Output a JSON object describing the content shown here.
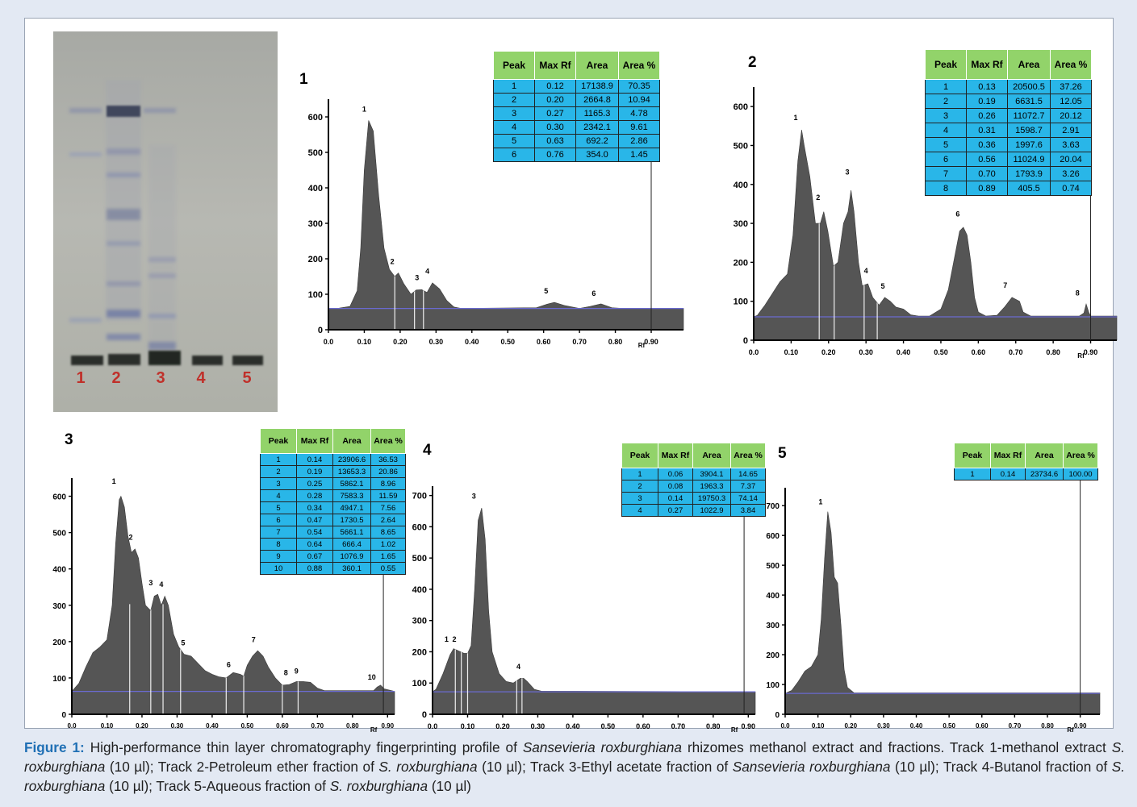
{
  "caption": {
    "label": "Figure 1:",
    "parts": [
      {
        "t": " High-performance thin layer chromatography fingerprinting profile of ",
        "i": false
      },
      {
        "t": "Sansevieria roxburghiana",
        "i": true
      },
      {
        "t": " rhizomes methanol extract and fractions. Track 1-methanol extract ",
        "i": false
      },
      {
        "t": "S. roxburghiana",
        "i": true
      },
      {
        "t": " (10 µl); Track 2-Petroleum ether fraction of ",
        "i": false
      },
      {
        "t": "S. roxburghiana",
        "i": true
      },
      {
        "t": " (10 µl); Track 3-Ethyl acetate fraction of ",
        "i": false
      },
      {
        "t": "Sansevieria roxburghiana",
        "i": true
      },
      {
        "t": " (10 µl); Track 4-Butanol fraction of ",
        "i": false
      },
      {
        "t": "S. roxburghiana",
        "i": true
      },
      {
        "t": " (10 µl); Track 5-Aqueous fraction of ",
        "i": false
      },
      {
        "t": "S. roxburghiana",
        "i": true
      },
      {
        "t": " (10 µl)",
        "i": false
      }
    ]
  },
  "tlc_plate": {
    "track_labels": [
      "1",
      "2",
      "3",
      "4",
      "5"
    ],
    "label_color": "#c0302a"
  },
  "table_headers": [
    "Peak",
    "Max Rf",
    "Area",
    "Area %"
  ],
  "colors": {
    "peak_fill": "#555555",
    "baseline": "#6a6ad0",
    "header": "#92d36a",
    "cell": "#29b6e8"
  },
  "chart_data": [
    {
      "type": "area",
      "panel_label": "1",
      "xlabel": "Rf",
      "x_ticks": [
        "0.0",
        "0.10",
        "0.20",
        "0.30",
        "0.40",
        "0.50",
        "0.60",
        "0.70",
        "0.80",
        "0.90"
      ],
      "y_ticks": [
        "0",
        "100",
        "200",
        "300",
        "400",
        "500",
        "600"
      ],
      "xlim": [
        0,
        0.99
      ],
      "ylim": [
        0,
        650
      ],
      "baseline": 60,
      "profile": [
        [
          0,
          60
        ],
        [
          0.03,
          61
        ],
        [
          0.06,
          66
        ],
        [
          0.08,
          110
        ],
        [
          0.09,
          230
        ],
        [
          0.1,
          450
        ],
        [
          0.112,
          590
        ],
        [
          0.125,
          560
        ],
        [
          0.14,
          380
        ],
        [
          0.155,
          230
        ],
        [
          0.17,
          170
        ],
        [
          0.185,
          150
        ],
        [
          0.195,
          160
        ],
        [
          0.21,
          130
        ],
        [
          0.23,
          100
        ],
        [
          0.245,
          112
        ],
        [
          0.26,
          113
        ],
        [
          0.275,
          105
        ],
        [
          0.29,
          132
        ],
        [
          0.31,
          115
        ],
        [
          0.33,
          82
        ],
        [
          0.35,
          64
        ],
        [
          0.37,
          60
        ],
        [
          0.58,
          62
        ],
        [
          0.61,
          72
        ],
        [
          0.63,
          77
        ],
        [
          0.66,
          68
        ],
        [
          0.7,
          60
        ],
        [
          0.73,
          66
        ],
        [
          0.76,
          73
        ],
        [
          0.79,
          62
        ],
        [
          0.82,
          60
        ],
        [
          0.99,
          60
        ]
      ],
      "cut_lines": [
        0.185,
        0.24,
        0.265
      ],
      "peak_labels": [
        {
          "n": "1",
          "x": 0.1,
          "y": 615
        },
        {
          "n": "2",
          "x": 0.178,
          "y": 185
        },
        {
          "n": "3",
          "x": 0.247,
          "y": 140
        },
        {
          "n": "4",
          "x": 0.276,
          "y": 158
        },
        {
          "n": "5",
          "x": 0.607,
          "y": 102
        },
        {
          "n": "6",
          "x": 0.74,
          "y": 96
        }
      ],
      "vline": 0.9,
      "table": [
        [
          "1",
          "0.12",
          "17138.9",
          "70.35"
        ],
        [
          "2",
          "0.20",
          "2664.8",
          "10.94"
        ],
        [
          "3",
          "0.27",
          "1165.3",
          "4.78"
        ],
        [
          "4",
          "0.30",
          "2342.1",
          "9.61"
        ],
        [
          "5",
          "0.63",
          "692.2",
          "2.86"
        ],
        [
          "6",
          "0.76",
          "354.0",
          "1.45"
        ]
      ]
    },
    {
      "type": "area",
      "panel_label": "2",
      "xlabel": "Rf",
      "x_ticks": [
        "0.0",
        "0.10",
        "0.20",
        "0.30",
        "0.40",
        "0.50",
        "0.60",
        "0.70",
        "0.80",
        "0.90"
      ],
      "y_ticks": [
        "0",
        "100",
        "200",
        "300",
        "400",
        "500",
        "600"
      ],
      "xlim": [
        0,
        0.97
      ],
      "ylim": [
        0,
        650
      ],
      "baseline": 60,
      "profile": [
        [
          0,
          60
        ],
        [
          0.01,
          64
        ],
        [
          0.03,
          90
        ],
        [
          0.05,
          120
        ],
        [
          0.07,
          150
        ],
        [
          0.09,
          170
        ],
        [
          0.105,
          270
        ],
        [
          0.118,
          460
        ],
        [
          0.128,
          540
        ],
        [
          0.135,
          500
        ],
        [
          0.15,
          420
        ],
        [
          0.165,
          300
        ],
        [
          0.178,
          300
        ],
        [
          0.187,
          330
        ],
        [
          0.198,
          280
        ],
        [
          0.213,
          190
        ],
        [
          0.225,
          200
        ],
        [
          0.24,
          300
        ],
        [
          0.252,
          330
        ],
        [
          0.26,
          385
        ],
        [
          0.268,
          330
        ],
        [
          0.28,
          200
        ],
        [
          0.29,
          140
        ],
        [
          0.305,
          145
        ],
        [
          0.318,
          110
        ],
        [
          0.335,
          90
        ],
        [
          0.35,
          110
        ],
        [
          0.365,
          100
        ],
        [
          0.38,
          85
        ],
        [
          0.4,
          80
        ],
        [
          0.42,
          65
        ],
        [
          0.44,
          62
        ],
        [
          0.47,
          62
        ],
        [
          0.5,
          80
        ],
        [
          0.52,
          130
        ],
        [
          0.54,
          230
        ],
        [
          0.55,
          280
        ],
        [
          0.56,
          290
        ],
        [
          0.57,
          270
        ],
        [
          0.58,
          200
        ],
        [
          0.59,
          110
        ],
        [
          0.6,
          72
        ],
        [
          0.62,
          62
        ],
        [
          0.65,
          64
        ],
        [
          0.67,
          85
        ],
        [
          0.69,
          110
        ],
        [
          0.71,
          100
        ],
        [
          0.72,
          72
        ],
        [
          0.74,
          62
        ],
        [
          0.87,
          62
        ],
        [
          0.882,
          70
        ],
        [
          0.888,
          93
        ],
        [
          0.895,
          72
        ],
        [
          0.9,
          62
        ],
        [
          0.97,
          62
        ]
      ],
      "cut_lines": [
        0.175,
        0.215,
        0.295,
        0.33
      ],
      "peak_labels": [
        {
          "n": "1",
          "x": 0.112,
          "y": 565
        },
        {
          "n": "2",
          "x": 0.172,
          "y": 360
        },
        {
          "n": "3",
          "x": 0.25,
          "y": 425
        },
        {
          "n": "4",
          "x": 0.3,
          "y": 172
        },
        {
          "n": "5",
          "x": 0.345,
          "y": 132
        },
        {
          "n": "6",
          "x": 0.545,
          "y": 318
        },
        {
          "n": "7",
          "x": 0.672,
          "y": 135
        },
        {
          "n": "8",
          "x": 0.865,
          "y": 115
        }
      ],
      "vline": 0.9,
      "table": [
        [
          "1",
          "0.13",
          "20500.5",
          "37.26"
        ],
        [
          "2",
          "0.19",
          "6631.5",
          "12.05"
        ],
        [
          "3",
          "0.26",
          "11072.7",
          "20.12"
        ],
        [
          "4",
          "0.31",
          "1598.7",
          "2.91"
        ],
        [
          "5",
          "0.36",
          "1997.6",
          "3.63"
        ],
        [
          "6",
          "0.56",
          "11024.9",
          "20.04"
        ],
        [
          "7",
          "0.70",
          "1793.9",
          "3.26"
        ],
        [
          "8",
          "0.89",
          "405.5",
          "0.74"
        ]
      ]
    },
    {
      "type": "area",
      "panel_label": "3",
      "xlabel": "Rf",
      "x_ticks": [
        "0.0",
        "0.10",
        "0.20",
        "0.30",
        "0.40",
        "0.50",
        "0.60",
        "0.70",
        "0.80",
        "0.90"
      ],
      "y_ticks": [
        "0",
        "100",
        "200",
        "300",
        "400",
        "500",
        "600"
      ],
      "xlim": [
        0,
        0.92
      ],
      "ylim": [
        0,
        650
      ],
      "baseline": 63,
      "profile": [
        [
          0,
          63
        ],
        [
          0.02,
          85
        ],
        [
          0.04,
          130
        ],
        [
          0.06,
          170
        ],
        [
          0.08,
          185
        ],
        [
          0.1,
          205
        ],
        [
          0.115,
          300
        ],
        [
          0.125,
          470
        ],
        [
          0.135,
          590
        ],
        [
          0.14,
          600
        ],
        [
          0.15,
          570
        ],
        [
          0.16,
          490
        ],
        [
          0.17,
          445
        ],
        [
          0.18,
          455
        ],
        [
          0.19,
          430
        ],
        [
          0.2,
          360
        ],
        [
          0.21,
          300
        ],
        [
          0.225,
          285
        ],
        [
          0.235,
          325
        ],
        [
          0.245,
          330
        ],
        [
          0.255,
          300
        ],
        [
          0.265,
          325
        ],
        [
          0.275,
          300
        ],
        [
          0.29,
          220
        ],
        [
          0.305,
          185
        ],
        [
          0.32,
          165
        ],
        [
          0.34,
          160
        ],
        [
          0.36,
          140
        ],
        [
          0.38,
          120
        ],
        [
          0.4,
          110
        ],
        [
          0.42,
          103
        ],
        [
          0.44,
          100
        ],
        [
          0.46,
          115
        ],
        [
          0.48,
          110
        ],
        [
          0.49,
          105
        ],
        [
          0.5,
          135
        ],
        [
          0.515,
          160
        ],
        [
          0.53,
          175
        ],
        [
          0.545,
          160
        ],
        [
          0.56,
          130
        ],
        [
          0.58,
          100
        ],
        [
          0.6,
          80
        ],
        [
          0.62,
          82
        ],
        [
          0.64,
          90
        ],
        [
          0.66,
          90
        ],
        [
          0.68,
          88
        ],
        [
          0.7,
          72
        ],
        [
          0.72,
          65
        ],
        [
          0.86,
          65
        ],
        [
          0.87,
          75
        ],
        [
          0.88,
          80
        ],
        [
          0.89,
          70
        ],
        [
          0.92,
          63
        ]
      ],
      "cut_lines": [
        0.165,
        0.225,
        0.26,
        0.31,
        0.44,
        0.49,
        0.6,
        0.645
      ],
      "peak_labels": [
        {
          "n": "1",
          "x": 0.12,
          "y": 635
        },
        {
          "n": "2",
          "x": 0.168,
          "y": 480
        },
        {
          "n": "3",
          "x": 0.225,
          "y": 355
        },
        {
          "n": "4",
          "x": 0.255,
          "y": 350
        },
        {
          "n": "5",
          "x": 0.317,
          "y": 190
        },
        {
          "n": "6",
          "x": 0.447,
          "y": 130
        },
        {
          "n": "7",
          "x": 0.518,
          "y": 198
        },
        {
          "n": "8",
          "x": 0.61,
          "y": 108
        },
        {
          "n": "9",
          "x": 0.64,
          "y": 112
        },
        {
          "n": "10",
          "x": 0.855,
          "y": 95
        }
      ],
      "vline": 0.888,
      "table": [
        [
          "1",
          "0.14",
          "23906.6",
          "36.53"
        ],
        [
          "2",
          "0.19",
          "13653.3",
          "20.86"
        ],
        [
          "3",
          "0.25",
          "5862.1",
          "8.96"
        ],
        [
          "4",
          "0.28",
          "7583.3",
          "11.59"
        ],
        [
          "5",
          "0.34",
          "4947.1",
          "7.56"
        ],
        [
          "6",
          "0.47",
          "1730.5",
          "2.64"
        ],
        [
          "7",
          "0.54",
          "5661.1",
          "8.65"
        ],
        [
          "8",
          "0.64",
          "666.4",
          "1.02"
        ],
        [
          "9",
          "0.67",
          "1076.9",
          "1.65"
        ],
        [
          "10",
          "0.88",
          "360.1",
          "0.55"
        ]
      ]
    },
    {
      "type": "area",
      "panel_label": "4",
      "xlabel": "Rf",
      "x_ticks": [
        "0.0",
        "0.10",
        "0.20",
        "0.30",
        "0.40",
        "0.50",
        "0.60",
        "0.70",
        "0.80",
        "0.90"
      ],
      "y_ticks": [
        "0",
        "100",
        "200",
        "300",
        "400",
        "500",
        "600",
        "700"
      ],
      "xlim": [
        0,
        0.92
      ],
      "ylim": [
        0,
        730
      ],
      "baseline": 72,
      "profile": [
        [
          0,
          72
        ],
        [
          0.01,
          80
        ],
        [
          0.03,
          130
        ],
        [
          0.05,
          190
        ],
        [
          0.06,
          210
        ],
        [
          0.07,
          205
        ],
        [
          0.08,
          200
        ],
        [
          0.09,
          195
        ],
        [
          0.1,
          195
        ],
        [
          0.11,
          220
        ],
        [
          0.12,
          400
        ],
        [
          0.13,
          620
        ],
        [
          0.14,
          660
        ],
        [
          0.15,
          560
        ],
        [
          0.16,
          330
        ],
        [
          0.17,
          200
        ],
        [
          0.19,
          130
        ],
        [
          0.21,
          105
        ],
        [
          0.23,
          100
        ],
        [
          0.25,
          115
        ],
        [
          0.26,
          115
        ],
        [
          0.27,
          105
        ],
        [
          0.29,
          80
        ],
        [
          0.31,
          74
        ],
        [
          0.92,
          72
        ]
      ],
      "cut_lines": [
        0.065,
        0.082,
        0.1,
        0.24,
        0.255
      ],
      "peak_labels": [
        {
          "n": "1",
          "x": 0.04,
          "y": 232
        },
        {
          "n": "2",
          "x": 0.062,
          "y": 232
        },
        {
          "n": "3",
          "x": 0.118,
          "y": 690
        },
        {
          "n": "4",
          "x": 0.245,
          "y": 145
        }
      ],
      "vline": 0.888,
      "table": [
        [
          "1",
          "0.06",
          "3904.1",
          "14.65"
        ],
        [
          "2",
          "0.08",
          "1963.3",
          "7.37"
        ],
        [
          "3",
          "0.14",
          "19750.3",
          "74.14"
        ],
        [
          "4",
          "0.27",
          "1022.9",
          "3.84"
        ]
      ]
    },
    {
      "type": "area",
      "panel_label": "5",
      "xlabel": "Rf",
      "x_ticks": [
        "0.0",
        "0.10",
        "0.20",
        "0.30",
        "0.40",
        "0.50",
        "0.60",
        "0.70",
        "0.80",
        "0.90"
      ],
      "y_ticks": [
        "0",
        "100",
        "200",
        "300",
        "400",
        "500",
        "600",
        "700"
      ],
      "xlim": [
        0,
        0.96
      ],
      "ylim": [
        0,
        760
      ],
      "baseline": 70,
      "profile": [
        [
          0,
          70
        ],
        [
          0.02,
          80
        ],
        [
          0.04,
          110
        ],
        [
          0.06,
          145
        ],
        [
          0.08,
          160
        ],
        [
          0.1,
          200
        ],
        [
          0.11,
          320
        ],
        [
          0.12,
          520
        ],
        [
          0.13,
          680
        ],
        [
          0.14,
          610
        ],
        [
          0.15,
          460
        ],
        [
          0.16,
          440
        ],
        [
          0.17,
          300
        ],
        [
          0.18,
          150
        ],
        [
          0.19,
          90
        ],
        [
          0.21,
          72
        ],
        [
          0.96,
          72
        ]
      ],
      "cut_lines": [],
      "peak_labels": [
        {
          "n": "1",
          "x": 0.108,
          "y": 705
        }
      ],
      "vline": 0.9,
      "table": [
        [
          "1",
          "0.14",
          "23734.6",
          "100.00"
        ]
      ]
    }
  ]
}
